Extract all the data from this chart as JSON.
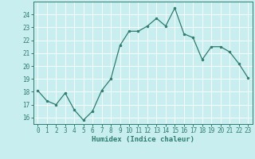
{
  "x": [
    0,
    1,
    2,
    3,
    4,
    5,
    6,
    7,
    8,
    9,
    10,
    11,
    12,
    13,
    14,
    15,
    16,
    17,
    18,
    19,
    20,
    21,
    22,
    23
  ],
  "y": [
    18.1,
    17.3,
    17.0,
    17.9,
    16.6,
    15.8,
    16.5,
    18.1,
    19.0,
    21.6,
    22.7,
    22.7,
    23.1,
    23.7,
    23.1,
    24.5,
    22.5,
    22.2,
    20.5,
    21.5,
    21.5,
    21.1,
    20.2,
    19.1
  ],
  "line_color": "#2d7d6e",
  "bg_color": "#c8eef0",
  "grid_color": "#b0d8da",
  "xlabel": "Humidex (Indice chaleur)",
  "ylim": [
    15.5,
    25.0
  ],
  "xlim": [
    -0.5,
    23.5
  ],
  "yticks": [
    16,
    17,
    18,
    19,
    20,
    21,
    22,
    23,
    24
  ],
  "xticks": [
    0,
    1,
    2,
    3,
    4,
    5,
    6,
    7,
    8,
    9,
    10,
    11,
    12,
    13,
    14,
    15,
    16,
    17,
    18,
    19,
    20,
    21,
    22,
    23
  ],
  "tick_fontsize": 5.5,
  "xlabel_fontsize": 6.5
}
